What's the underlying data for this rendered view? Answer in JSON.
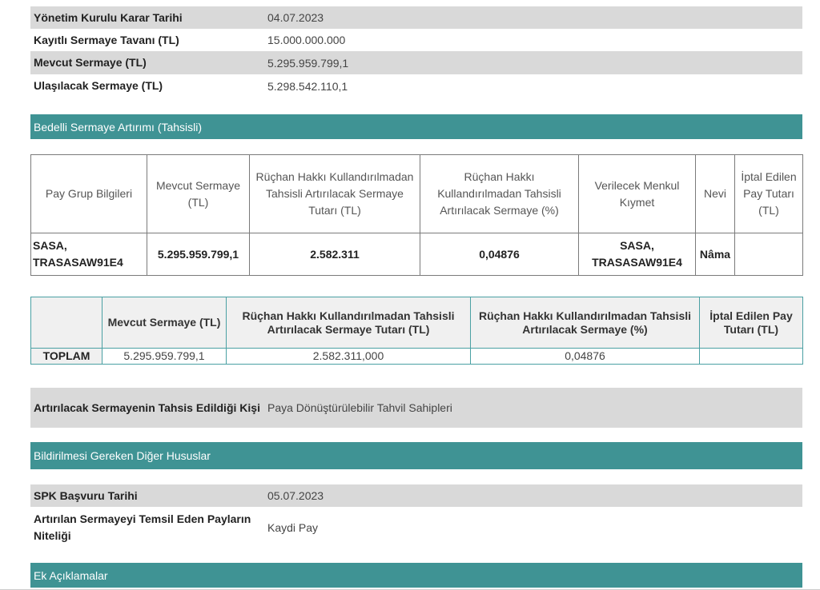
{
  "info_rows": [
    {
      "label": "Yönetim Kurulu Karar Tarihi",
      "value": "04.07.2023"
    },
    {
      "label": "Kayıtlı Sermaye Tavanı (TL)",
      "value": "15.000.000.000"
    },
    {
      "label": "Mevcut Sermaye (TL)",
      "value": "5.295.959.799,1"
    },
    {
      "label": "Ulaşılacak Sermaye (TL)",
      "value": "5.298.542.110,1"
    }
  ],
  "section_1": "Bedelli Sermaye Artırımı (Tahsisli)",
  "table_1": {
    "headers": [
      "Pay Grup Bilgileri",
      "Mevcut Sermaye (TL)",
      "Rüçhan Hakkı Kullandırılmadan Tahsisli Artırılacak Sermaye Tutarı (TL)",
      "Rüçhan Hakkı Kullandırılmadan Tahsisli Artırılacak Sermaye (%)",
      "Verilecek Menkul Kıymet",
      "Nevi",
      "İptal Edilen Pay Tutarı (TL)"
    ],
    "rows": [
      [
        "SASA, TRASASAW91E4",
        "5.295.959.799,1",
        "2.582.311",
        "0,04876",
        "SASA, TRASASAW91E4",
        "Nâma"
      ]
    ]
  },
  "table_2": {
    "headers": [
      "Mevcut Sermaye (TL)",
      "Rüçhan Hakkı Kullandırılmadan Tahsisli Artırılacak Sermaye Tutarı (TL)",
      "Rüçhan Hakkı Kullandırılmadan Tahsisli Artırılacak Sermaye (%)",
      "İptal Edilen Pay Tutarı (TL)"
    ],
    "rows": [
      [
        "TOPLAM",
        "5.295.959.799,1",
        "2.582.311,000",
        "0,04876"
      ]
    ]
  },
  "allocation": {
    "label": "Artırılacak Sermayenin Tahsis Edildiği Kişi",
    "value": "Paya Dönüştürülebilir Tahvil Sahipleri"
  },
  "section_2": "Bildirilmesi Gereken Diğer Hususlar",
  "other_rows": [
    {
      "label": "SPK Başvuru Tarihi",
      "value": "05.07.2023"
    },
    {
      "label": "Artırılan Sermayeyi Temsil Eden Payların Niteliği",
      "value": "Kaydi Pay"
    }
  ],
  "section_3": "Ek Açıklamalar"
}
